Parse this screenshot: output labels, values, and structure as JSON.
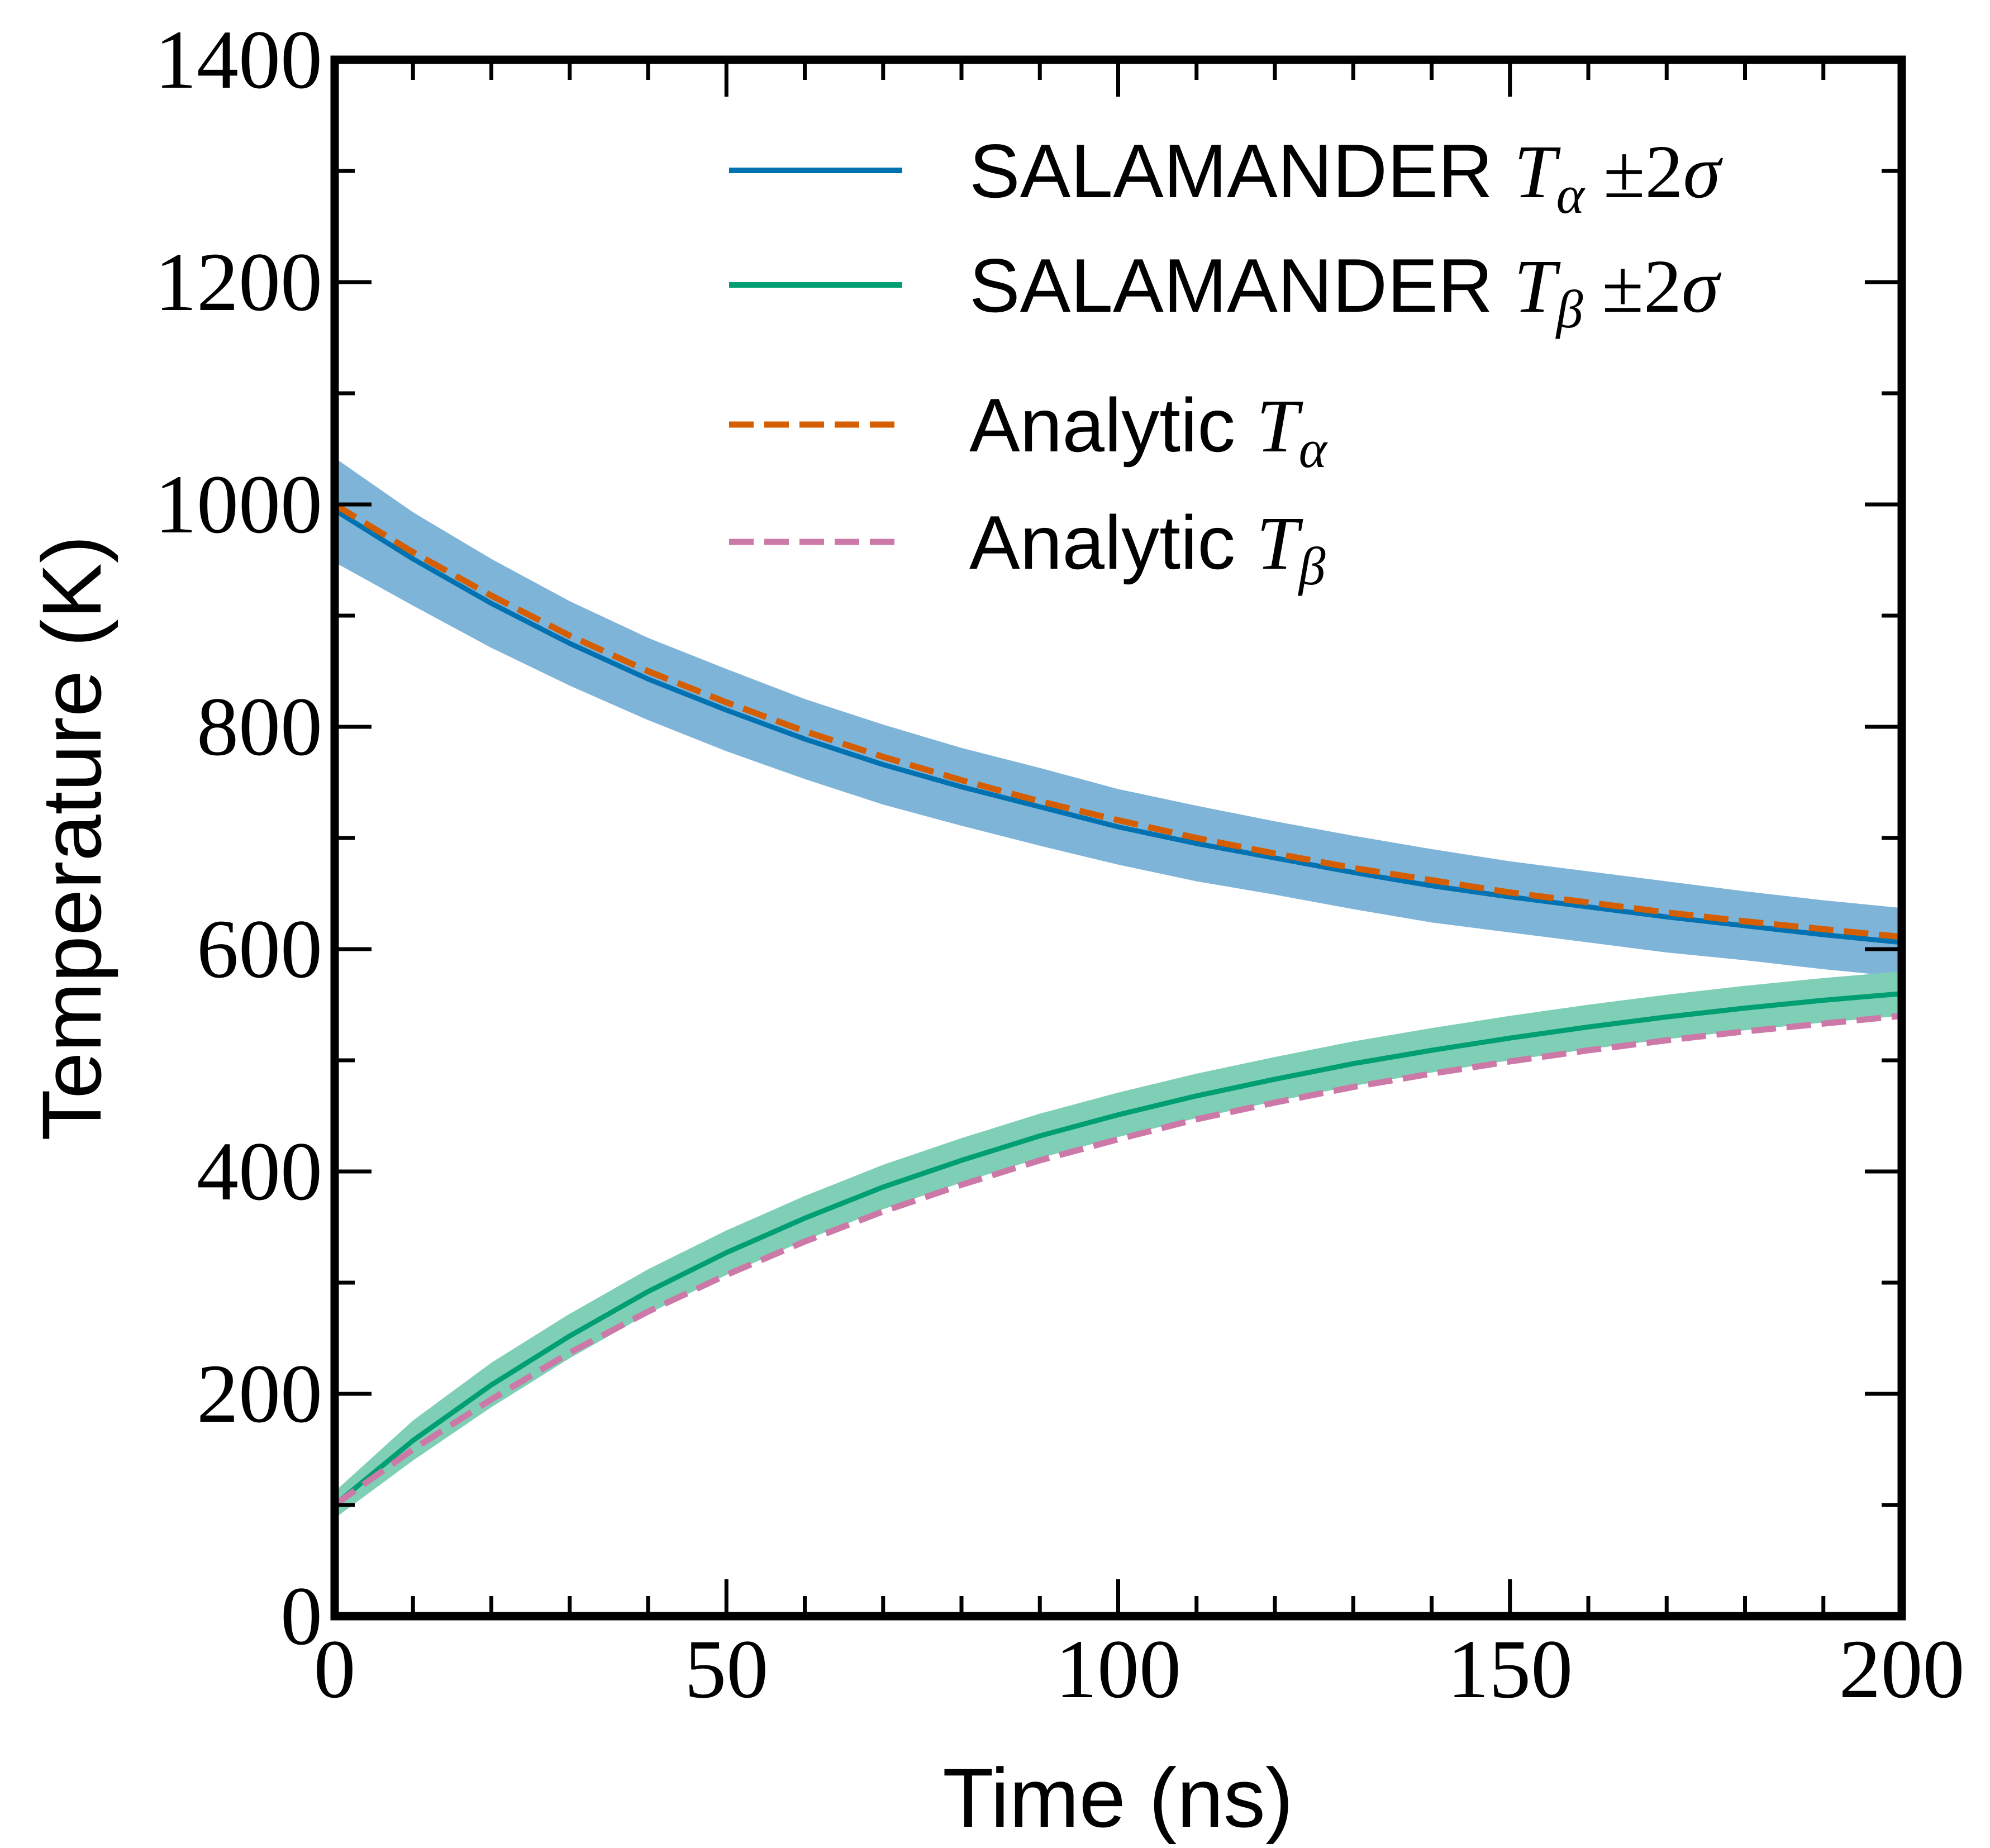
{
  "chart_data": {
    "type": "line",
    "xlabel": "Time (ns)",
    "ylabel": "Temperature (K)",
    "xlim": [
      0,
      200
    ],
    "ylim": [
      0,
      1400
    ],
    "x_ticks": [
      "0",
      "50",
      "100",
      "150",
      "200"
    ],
    "y_ticks": [
      "0",
      "200",
      "400",
      "600",
      "800",
      "1000",
      "1200",
      "1400"
    ],
    "grid": false,
    "legend_position": "top-right",
    "x": [
      0,
      10,
      20,
      30,
      40,
      50,
      60,
      70,
      80,
      90,
      100,
      110,
      120,
      130,
      140,
      150,
      160,
      170,
      180,
      190,
      200
    ],
    "series": [
      {
        "legend": {
          "prefix": "SALAMANDER ",
          "symbol": "T",
          "subscript": "α",
          "suffix": " ±2σ"
        },
        "style": "solid",
        "color": "#0072b2",
        "band_color": "#7fb4d9",
        "values": [
          995,
          951,
          911,
          875,
          843,
          815,
          789,
          766,
          746,
          728,
          710,
          695,
          682,
          669,
          657,
          647,
          638,
          629,
          621,
          613,
          606
        ],
        "band_halfwidth": [
          47,
          42,
          40,
          38,
          37,
          37,
          36,
          36,
          35,
          35,
          34,
          34,
          33,
          33,
          33,
          32,
          32,
          32,
          31,
          31,
          31
        ]
      },
      {
        "legend": {
          "prefix": "SALAMANDER ",
          "symbol": "T",
          "subscript": "β",
          "suffix": " ±2σ"
        },
        "style": "solid",
        "color": "#009e73",
        "band_color": "#7fcfb6",
        "values": [
          100,
          158,
          208,
          252,
          292,
          327,
          358,
          386,
          410,
          432,
          451,
          468,
          483,
          497,
          509,
          520,
          530,
          539,
          547,
          554,
          560
        ],
        "band_halfwidth": [
          12,
          18,
          20,
          20,
          20,
          20,
          20,
          20,
          20,
          20,
          20,
          20,
          20,
          20,
          20,
          20,
          20,
          20,
          20,
          20,
          20
        ]
      },
      {
        "legend": {
          "prefix": "Analytic ",
          "symbol": "T",
          "subscript": "α",
          "suffix": ""
        },
        "style": "dashed",
        "color": "#d55e00",
        "values": [
          1000,
          957,
          918,
          882,
          850,
          822,
          796,
          773,
          752,
          733,
          716,
          700,
          686,
          673,
          662,
          651,
          642,
          633,
          625,
          618,
          611
        ]
      },
      {
        "legend": {
          "prefix": "Analytic ",
          "symbol": "T",
          "subscript": "β",
          "suffix": ""
        },
        "style": "dashed",
        "color": "#cc79a7",
        "values": [
          100,
          150,
          195,
          237,
          274,
          307,
          337,
          364,
          388,
          410,
          429,
          447,
          462,
          476,
          488,
          499,
          509,
          518,
          526,
          533,
          540
        ]
      }
    ]
  }
}
